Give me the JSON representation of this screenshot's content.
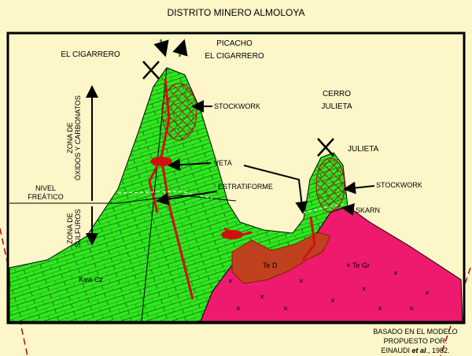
{
  "header": {
    "title": "DISTRITO MINERO ALMOLOYA"
  },
  "places": [
    {
      "lines": [
        "EL CIGARRERO"
      ]
    },
    {
      "lines": [
        "PICACHO",
        "EL CIGARRERO"
      ]
    },
    {
      "lines": [
        "CERRO",
        "JULIETA"
      ]
    },
    {
      "lines": [
        "JULIETA"
      ]
    }
  ],
  "callouts": [
    "STOCKWORK",
    "VETA",
    "ESTRATIFORME",
    "STOCKWORK",
    "SKARN"
  ],
  "water_table": [
    "NIVEL",
    "FREÁTICO"
  ],
  "zones": {
    "oxides": [
      "ZONA DE",
      "ÓXIDOS Y CARBONATOS"
    ],
    "sulfides": [
      "ZONA DE",
      "SULFUROS"
    ]
  },
  "units": [
    "Kaw Cz",
    "Te D",
    "Te Gr"
  ],
  "source": {
    "lines": [
      "BASADO EN EL MODELO",
      "PROPUESTO POR:"
    ],
    "author": "EINAUDI",
    "etal": "et al",
    "year": "., 1982."
  }
}
